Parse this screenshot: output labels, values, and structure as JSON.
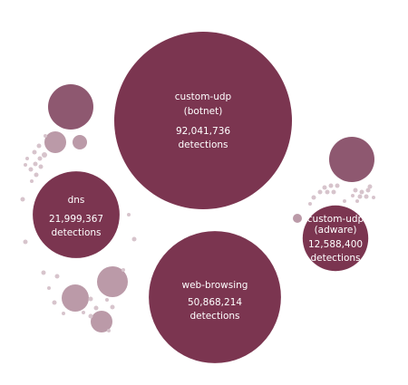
{
  "chart_data": {
    "type": "bubble",
    "title": "",
    "unit_label": "detections",
    "colors": {
      "large": "#7b3550",
      "medium": "#8e5870",
      "small": "#bb9aa8",
      "tiny": "#d7c4cc",
      "label": "#ffffff"
    },
    "bubbles": [
      {
        "name": "custom-udp (botnet)",
        "lines": [
          "custom-udp",
          "(botnet)"
        ],
        "value": 92041736,
        "value_text": "92,041,736",
        "unit_text": "detections"
      },
      {
        "name": "web-browsing",
        "lines": [
          "web-browsing"
        ],
        "value": 50868214,
        "value_text": "50,868,214",
        "unit_text": "detections"
      },
      {
        "name": "dns",
        "lines": [
          "dns"
        ],
        "value": 21999367,
        "value_text": "21,999,367",
        "unit_text": "detections"
      },
      {
        "name": "custom-udp (adware)",
        "lines": [
          "custom-udp",
          "(adware)"
        ],
        "value": 12588400,
        "value_text": "12,588,400",
        "unit_text": "detections"
      }
    ],
    "unlabeled_bubble_count": 55
  }
}
